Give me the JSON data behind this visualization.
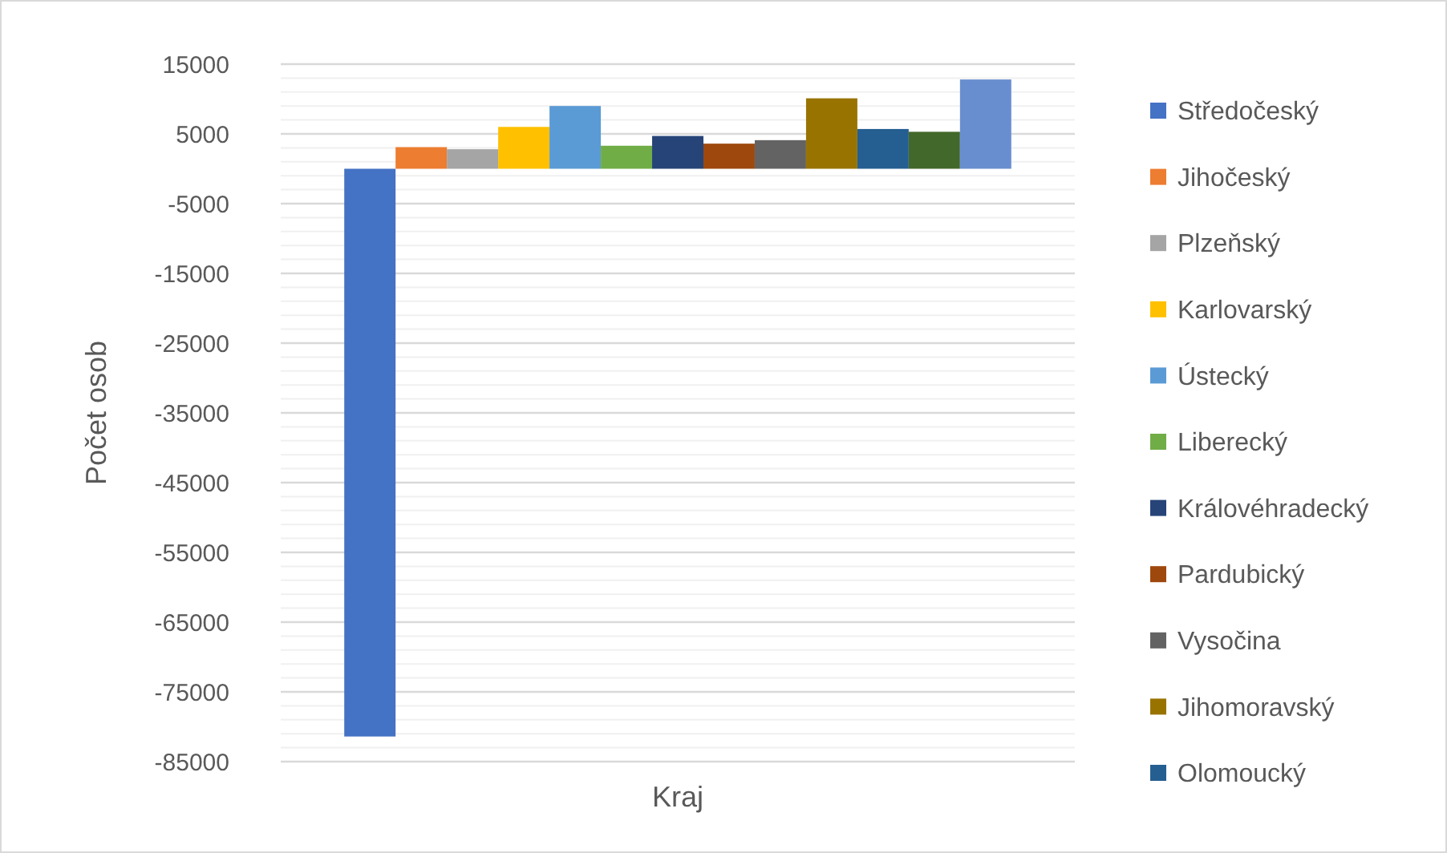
{
  "chart_data": {
    "type": "bar",
    "xlabel": "Kraj",
    "ylabel": "Počet osob",
    "categories": [
      null
    ],
    "series": [
      {
        "name": "Středočeský",
        "color": "#4472c4",
        "values": [
          -81400
        ]
      },
      {
        "name": "Jihočeský",
        "color": "#ed7d31",
        "values": [
          3100
        ]
      },
      {
        "name": "Plzeňský",
        "color": "#a5a5a5",
        "values": [
          2800
        ]
      },
      {
        "name": "Karlovarský",
        "color": "#ffc000",
        "values": [
          6000
        ]
      },
      {
        "name": "Ústecký",
        "color": "#5b9bd5",
        "values": [
          9000
        ]
      },
      {
        "name": "Liberecký",
        "color": "#70ad47",
        "values": [
          3300
        ]
      },
      {
        "name": "Královéhradecký",
        "color": "#264478",
        "values": [
          4700
        ]
      },
      {
        "name": "Pardubický",
        "color": "#9e480e",
        "values": [
          3600
        ]
      },
      {
        "name": "Vysočina",
        "color": "#636363",
        "values": [
          4100
        ]
      },
      {
        "name": "Jihomoravský",
        "color": "#997300",
        "values": [
          10100
        ]
      },
      {
        "name": "Olomoucký",
        "color": "#255e91",
        "values": [
          5700
        ]
      },
      {
        "color": "#43682b",
        "values": [
          5300
        ]
      },
      {
        "color": "#698ed0",
        "values": [
          12800
        ]
      }
    ],
    "ylim": [
      -85000,
      15000
    ],
    "yticks": [
      -85000,
      {
        "value": -83000,
        "label": null
      },
      {
        "value": -81000,
        "label": null
      },
      {
        "value": -79000,
        "label": null
      },
      {
        "value": -77000,
        "label": null
      },
      -75000,
      {
        "value": -73000,
        "label": null
      },
      {
        "value": -71000,
        "label": null
      },
      {
        "value": -69000,
        "label": null
      },
      {
        "value": -67000,
        "label": null
      },
      -65000,
      {
        "value": -63000,
        "label": null
      },
      {
        "value": -61000,
        "label": null
      },
      {
        "value": -59000,
        "label": null
      },
      {
        "value": -57000,
        "label": null
      },
      -55000,
      {
        "value": -53000,
        "label": null
      },
      {
        "value": -51000,
        "label": null
      },
      {
        "value": -49000,
        "label": null
      },
      {
        "value": -47000,
        "label": null
      },
      -45000,
      {
        "value": -43000,
        "label": null
      },
      {
        "value": -41000,
        "label": null
      },
      {
        "value": -39000,
        "label": null
      },
      {
        "value": -37000,
        "label": null
      },
      -35000,
      {
        "value": -33000,
        "label": null
      },
      {
        "value": -31000,
        "label": null
      },
      {
        "value": -29000,
        "label": null
      },
      {
        "value": -27000,
        "label": null
      },
      -25000,
      {
        "value": -23000,
        "label": null
      },
      {
        "value": -21000,
        "label": null
      },
      {
        "value": -19000,
        "label": null
      },
      {
        "value": -17000,
        "label": null
      },
      -15000,
      {
        "value": -13000,
        "label": null
      },
      {
        "value": -11000,
        "label": null
      },
      {
        "value": -9000,
        "label": null
      },
      {
        "value": -7000,
        "label": null
      },
      -5000,
      {
        "value": -3000,
        "label": null
      },
      {
        "value": -1000,
        "label": null
      },
      {
        "value": 1000,
        "label": null
      },
      {
        "value": 3000,
        "label": null
      },
      5000,
      {
        "value": 7000,
        "label": null
      },
      {
        "value": 9000,
        "label": null
      },
      {
        "value": 11000,
        "label": null
      },
      {
        "value": 13000,
        "label": null
      },
      15000
    ],
    "grid": "y",
    "legend": "right"
  }
}
